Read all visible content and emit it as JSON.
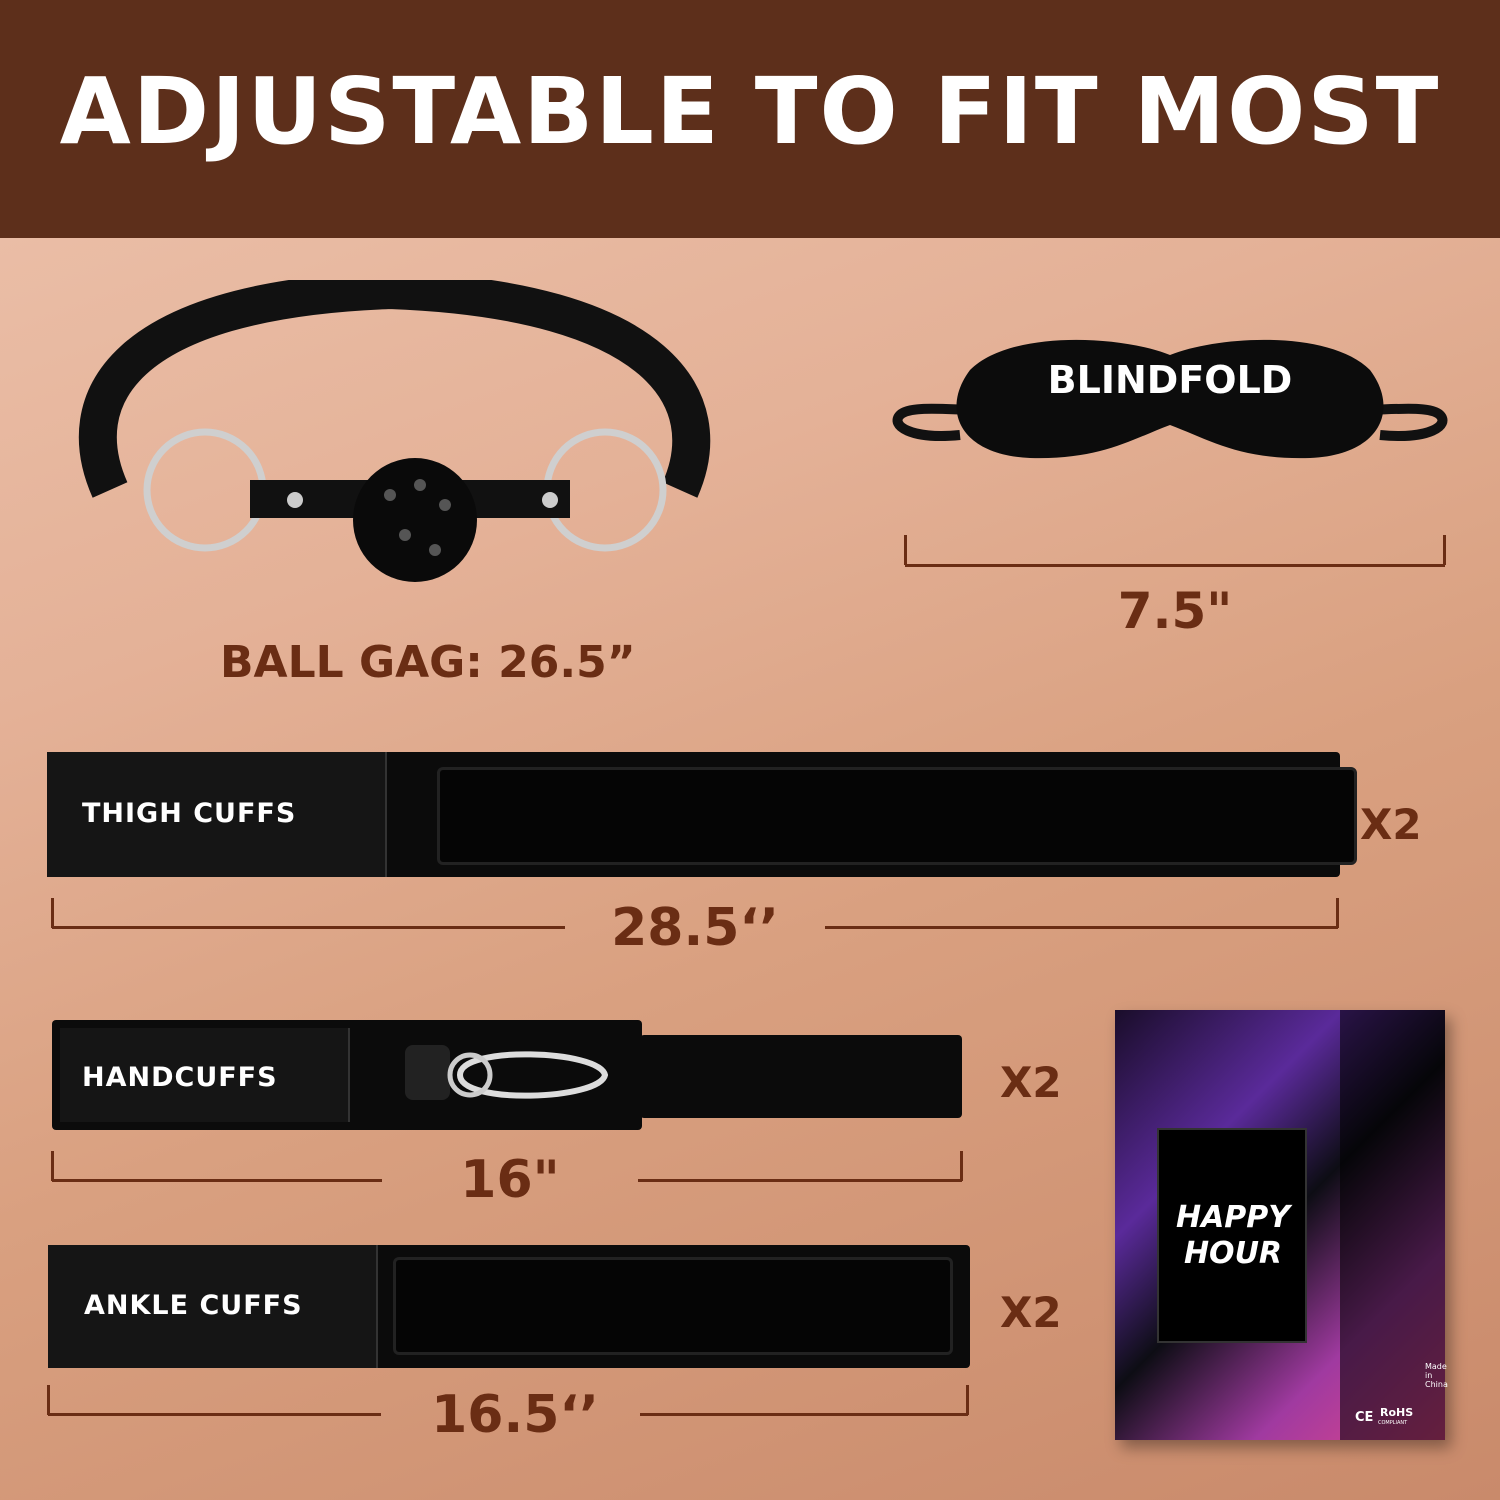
{
  "title": "ADJUSTABLE TO FIT MOST",
  "ball_gag": {
    "label": "BALL GAG: 26.5”"
  },
  "blindfold": {
    "label": "BLINDFOLD",
    "size": "7.5\""
  },
  "thigh_cuffs": {
    "label": "THIGH CUFFS",
    "size": "28.5‘’",
    "qty": "X2"
  },
  "handcuffs": {
    "label": "HANDCUFFS",
    "size": "16\"",
    "qty": "X2"
  },
  "ankle_cuffs": {
    "label": "ANKLE CUFFS",
    "size": "16.5‘’",
    "qty": "X2"
  },
  "box": {
    "logo": "HAPPY HOUR",
    "made_in": "Made in China",
    "rohs": "RoHS",
    "compliant": "COMPLIANT",
    "ce": "CE"
  },
  "colors": {
    "header": "#5d2f1b",
    "accent": "#6a2d14"
  }
}
